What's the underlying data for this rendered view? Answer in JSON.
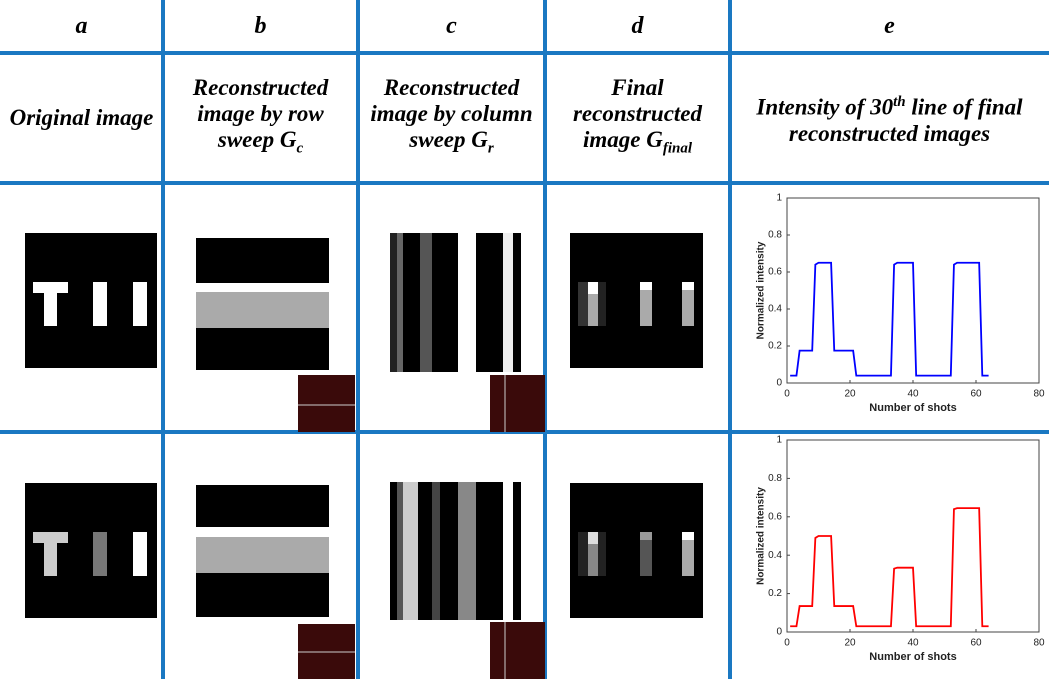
{
  "table": {
    "header": [
      "a",
      "b",
      "c",
      "d",
      "e"
    ],
    "titles": [
      {
        "text": "Original image"
      },
      {
        "text": "Reconstructed image by row sweep G",
        "sub": "c"
      },
      {
        "text": "Reconstructed image by column sweep G",
        "sub": "r"
      },
      {
        "text": "Final reconstructed image G",
        "sub": "final"
      },
      {
        "text": "Intensity of 30",
        "sup": "th",
        "rest": " line of final reconstructed images"
      }
    ]
  },
  "chart_data": [
    {
      "type": "line",
      "xlabel": "Number of shots",
      "ylabel": "Normalized intensity",
      "x": [
        1,
        3,
        4,
        8,
        9,
        10,
        14,
        15,
        21,
        22,
        33,
        34,
        35,
        40,
        41,
        52,
        53,
        54,
        61,
        62,
        64
      ],
      "series": [
        {
          "color": "#0000ff",
          "values": [
            0.04,
            0.04,
            0.175,
            0.175,
            0.64,
            0.65,
            0.65,
            0.175,
            0.175,
            0.04,
            0.04,
            0.64,
            0.65,
            0.65,
            0.04,
            0.04,
            0.64,
            0.65,
            0.65,
            0.04,
            0.04
          ]
        }
      ],
      "xlim": [
        0,
        80
      ],
      "xticks": [
        0,
        20,
        40,
        60,
        80
      ],
      "ylim": [
        0,
        1
      ],
      "yticks": [
        0,
        0.2,
        0.4,
        0.6,
        0.8,
        1
      ]
    },
    {
      "type": "line",
      "xlabel": "Number of shots",
      "ylabel": "Normalized intensity",
      "x": [
        1,
        3,
        4,
        8,
        9,
        10,
        14,
        15,
        21,
        22,
        33,
        34,
        35,
        40,
        41,
        52,
        53,
        54,
        61,
        62,
        64
      ],
      "series": [
        {
          "color": "#ff0000",
          "values": [
            0.03,
            0.03,
            0.135,
            0.135,
            0.49,
            0.5,
            0.5,
            0.135,
            0.135,
            0.03,
            0.03,
            0.33,
            0.335,
            0.335,
            0.03,
            0.03,
            0.64,
            0.645,
            0.645,
            0.03,
            0.03
          ]
        }
      ],
      "xlim": [
        0,
        80
      ],
      "xticks": [
        0,
        20,
        40,
        60,
        80
      ],
      "ylim": [
        0,
        1
      ],
      "yticks": [
        0,
        0.2,
        0.4,
        0.6,
        0.8,
        1
      ]
    }
  ]
}
